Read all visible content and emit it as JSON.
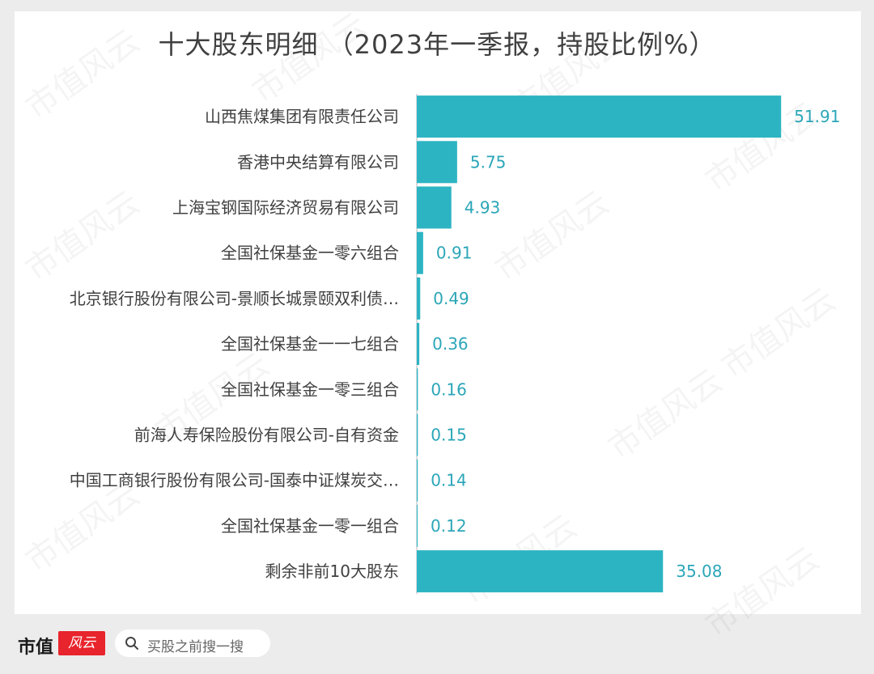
{
  "title": "十大股东明细 （2023年一季报，持股比例%）",
  "footer": {
    "brand": "市值",
    "search_placeholder": "买股之前搜一搜"
  },
  "colors": {
    "bar": "#2db4c3",
    "label": "#2ba6b8",
    "axis": "#d0d0d0"
  },
  "chart_data": {
    "type": "bar",
    "orientation": "horizontal",
    "title": "十大股东明细 （2023年一季报，持股比例%）",
    "categories": [
      "山西焦煤集团有限责任公司",
      "香港中央结算有限公司",
      "上海宝钢国际经济贸易有限公司",
      "全国社保基金一零六组合",
      "北京银行股份有限公司-景顺长城景颐双利债…",
      "全国社保基金一一七组合",
      "全国社保基金一零三组合",
      "前海人寿保险股份有限公司-自有资金",
      "中国工商银行股份有限公司-国泰中证煤炭交…",
      "全国社保基金一零一组合",
      "剩余非前10大股东"
    ],
    "values": [
      51.91,
      5.75,
      4.93,
      0.91,
      0.49,
      0.36,
      0.16,
      0.15,
      0.14,
      0.12,
      35.08
    ],
    "value_labels": [
      "51.91",
      "5.75",
      "4.93",
      "0.91",
      "0.49",
      "0.36",
      "0.16",
      "0.15",
      "0.14",
      "0.12",
      "35.08"
    ],
    "xlim": [
      0,
      52
    ],
    "grid": false,
    "legend": "none"
  }
}
